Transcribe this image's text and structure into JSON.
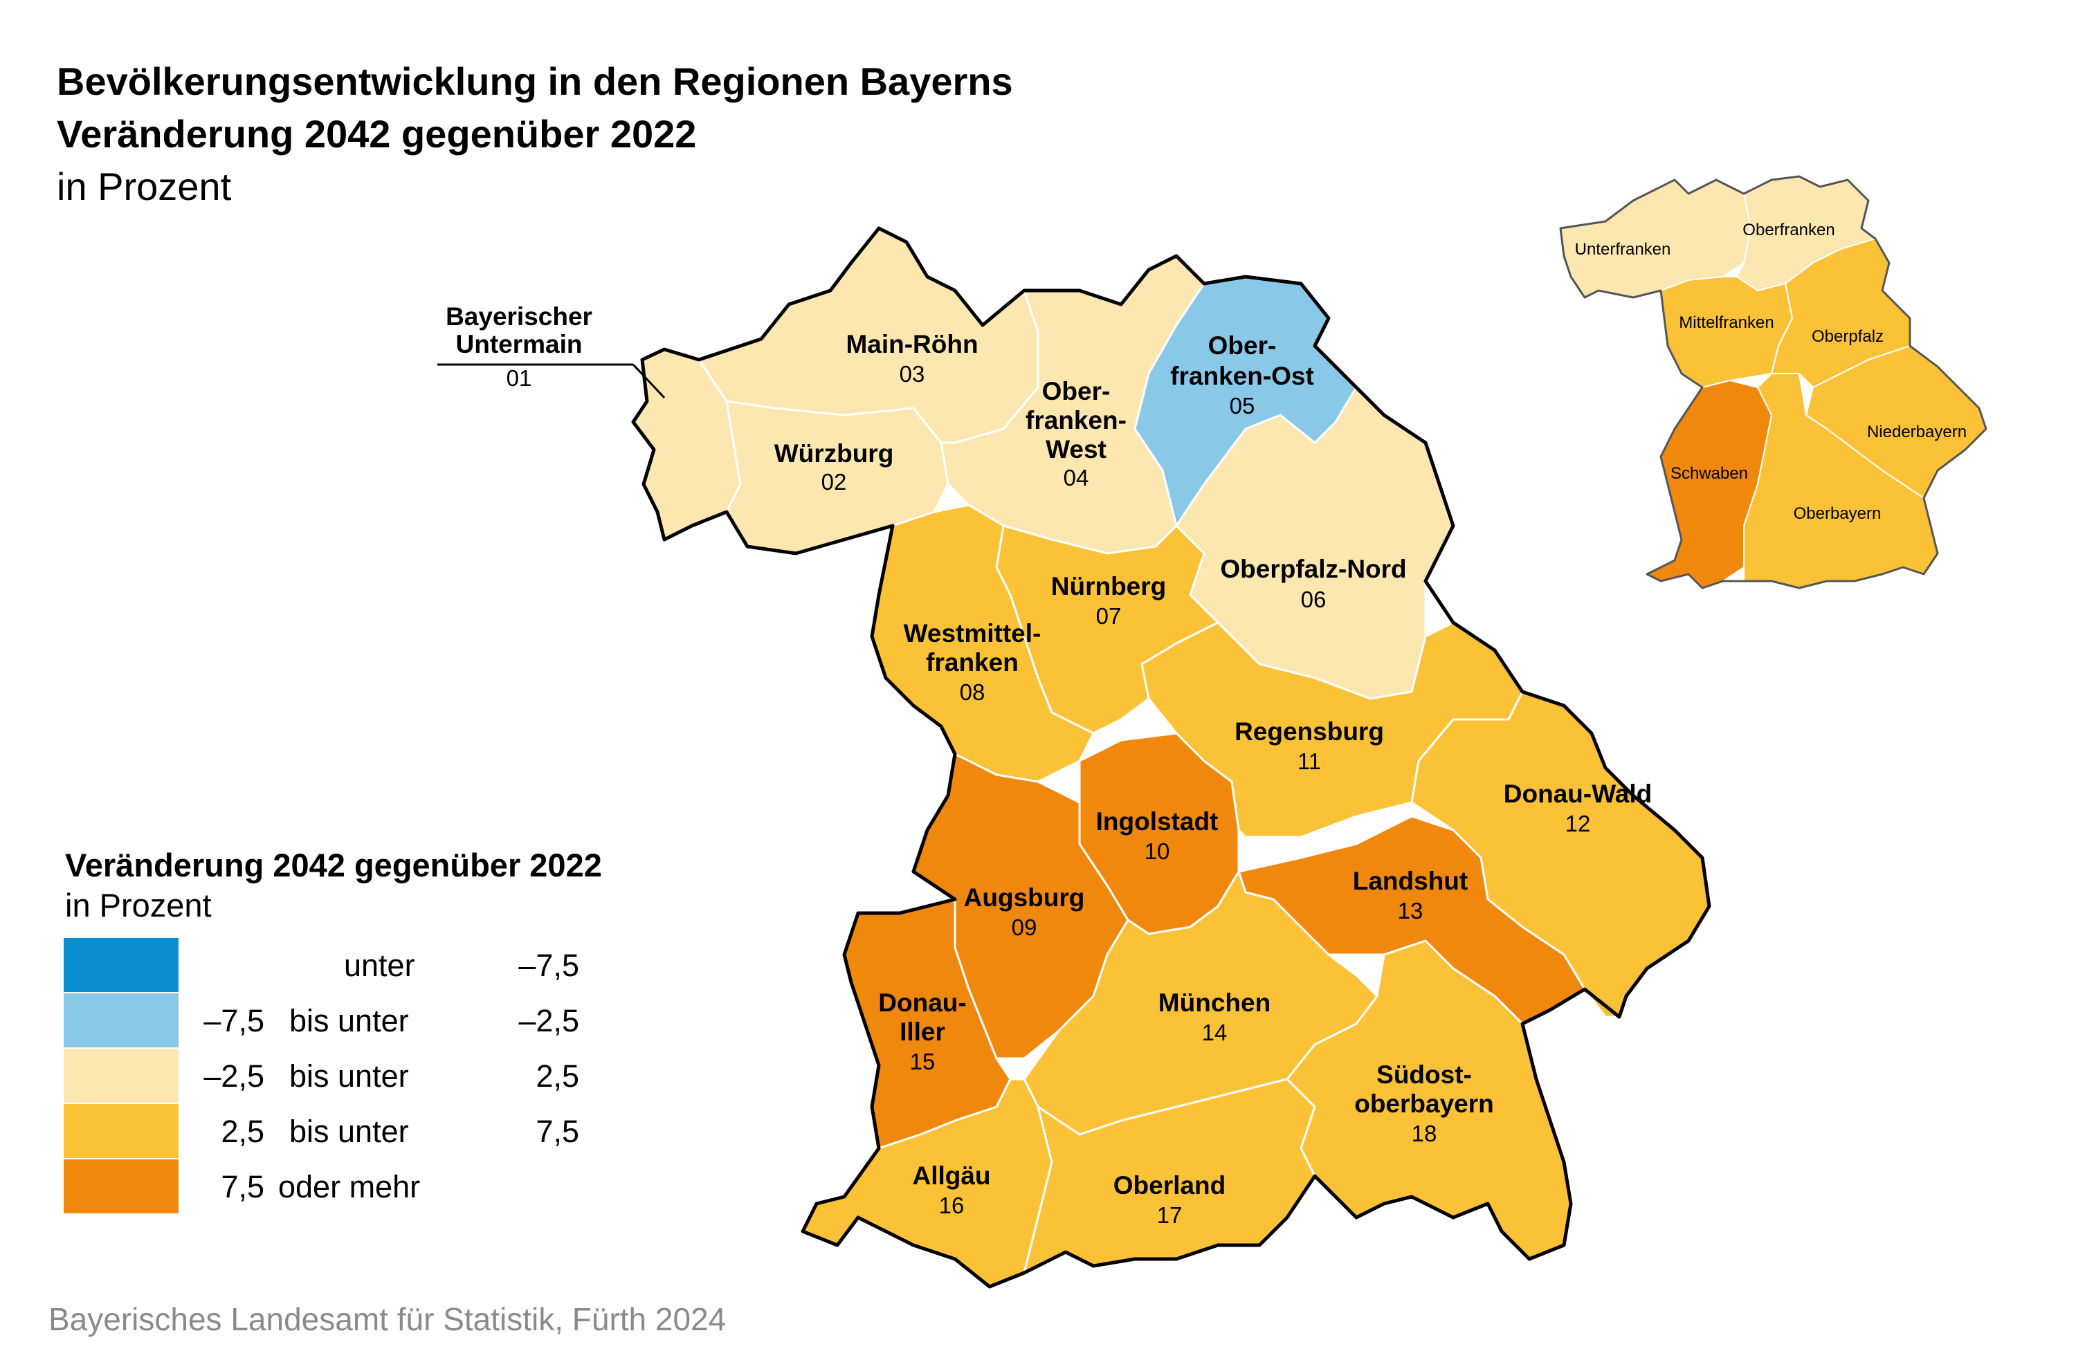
{
  "title": {
    "line1": "Bevölkerungsentwicklung in den Regionen Bayerns",
    "line2": "Veränderung 2042 gegenüber 2022",
    "line3": "in Prozent"
  },
  "colors": {
    "unter_minus_7_5": "#0a8fd2",
    "minus_7_5_bis_minus_2_5": "#8ac8e8",
    "minus_2_5_bis_2_5": "#fde7b0",
    "plus_2_5_bis_7_5": "#fcc237",
    "ab_7_5": "#f0880e"
  },
  "regions": [
    {
      "nr": "01",
      "name": "Bayerischer Untermain",
      "class": "minus_2_5_bis_2_5"
    },
    {
      "nr": "02",
      "name": "Würzburg",
      "class": "minus_2_5_bis_2_5"
    },
    {
      "nr": "03",
      "name": "Main-Röhn",
      "class": "minus_2_5_bis_2_5"
    },
    {
      "nr": "04",
      "name": "Oberfranken-West",
      "class": "minus_2_5_bis_2_5"
    },
    {
      "nr": "05",
      "name": "Oberfranken-Ost",
      "class": "minus_7_5_bis_minus_2_5"
    },
    {
      "nr": "06",
      "name": "Oberpfalz-Nord",
      "class": "minus_2_5_bis_2_5"
    },
    {
      "nr": "07",
      "name": "Nürnberg",
      "class": "plus_2_5_bis_7_5"
    },
    {
      "nr": "08",
      "name": "Westmittelfranken",
      "class": "plus_2_5_bis_7_5"
    },
    {
      "nr": "09",
      "name": "Augsburg",
      "class": "ab_7_5"
    },
    {
      "nr": "10",
      "name": "Ingolstadt",
      "class": "ab_7_5"
    },
    {
      "nr": "11",
      "name": "Regensburg",
      "class": "plus_2_5_bis_7_5"
    },
    {
      "nr": "12",
      "name": "Donau-Wald",
      "class": "plus_2_5_bis_7_5"
    },
    {
      "nr": "13",
      "name": "Landshut",
      "class": "ab_7_5"
    },
    {
      "nr": "14",
      "name": "München",
      "class": "plus_2_5_bis_7_5"
    },
    {
      "nr": "15",
      "name": "Donau-Iller",
      "class": "ab_7_5"
    },
    {
      "nr": "16",
      "name": "Allgäu",
      "class": "plus_2_5_bis_7_5"
    },
    {
      "nr": "17",
      "name": "Oberland",
      "class": "plus_2_5_bis_7_5"
    },
    {
      "nr": "18",
      "name": "Südostoberbayern",
      "class": "plus_2_5_bis_7_5"
    }
  ],
  "labels": {
    "r01a": "Bayerischer",
    "r01b": "Untermain",
    "n01": "01",
    "r02": "Würzburg",
    "n02": "02",
    "r03": "Main-Röhn",
    "n03": "03",
    "r04a": "Ober-",
    "r04b": "franken-",
    "r04c": "West",
    "n04": "04",
    "r05a": "Ober-",
    "r05b": "franken-Ost",
    "n05": "05",
    "r06": "Oberpfalz-Nord",
    "n06": "06",
    "r07": "Nürnberg",
    "n07": "07",
    "r08a": "Westmittel-",
    "r08b": "franken",
    "n08": "08",
    "r09": "Augsburg",
    "n09": "09",
    "r10": "Ingolstadt",
    "n10": "10",
    "r11": "Regensburg",
    "n11": "11",
    "r12": "Donau-Wald",
    "n12": "12",
    "r13": "Landshut",
    "n13": "13",
    "r14": "München",
    "n14": "14",
    "r15a": "Donau-",
    "r15b": "Iller",
    "n15": "15",
    "r16": "Allgäu",
    "n16": "16",
    "r17": "Oberland",
    "n17": "17",
    "r18a": "Südost-",
    "r18b": "oberbayern",
    "n18": "18"
  },
  "inset": {
    "unterfranken": {
      "name": "Unterfranken",
      "class": "minus_2_5_bis_2_5"
    },
    "oberfranken": {
      "name": "Oberfranken",
      "class": "minus_2_5_bis_2_5"
    },
    "mittelfranken": {
      "name": "Mittelfranken",
      "class": "plus_2_5_bis_7_5"
    },
    "oberpfalz": {
      "name": "Oberpfalz",
      "class": "plus_2_5_bis_7_5"
    },
    "niederbayern": {
      "name": "Niederbayern",
      "class": "plus_2_5_bis_7_5"
    },
    "schwaben": {
      "name": "Schwaben",
      "class": "ab_7_5"
    },
    "oberbayern": {
      "name": "Oberbayern",
      "class": "plus_2_5_bis_7_5"
    }
  },
  "legend": {
    "title": "Veränderung 2042 gegenüber 2022",
    "subtitle": "in Prozent",
    "items": [
      {
        "from": "",
        "connector": "unter",
        "to": "–7,5",
        "color": "#0a8fd2"
      },
      {
        "from": "–7,5",
        "connector": "bis unter",
        "to": "–2,5",
        "color": "#8ac8e8"
      },
      {
        "from": "–2,5",
        "connector": "bis unter",
        "to": "2,5",
        "color": "#fde7b0"
      },
      {
        "from": "2,5",
        "connector": "bis unter",
        "to": "7,5",
        "color": "#fcc237"
      },
      {
        "from": "7,5",
        "connector": "oder mehr",
        "to": "",
        "color": "#f0880e"
      }
    ]
  },
  "source": "Bayerisches Landesamt für Statistik, Fürth 2024"
}
